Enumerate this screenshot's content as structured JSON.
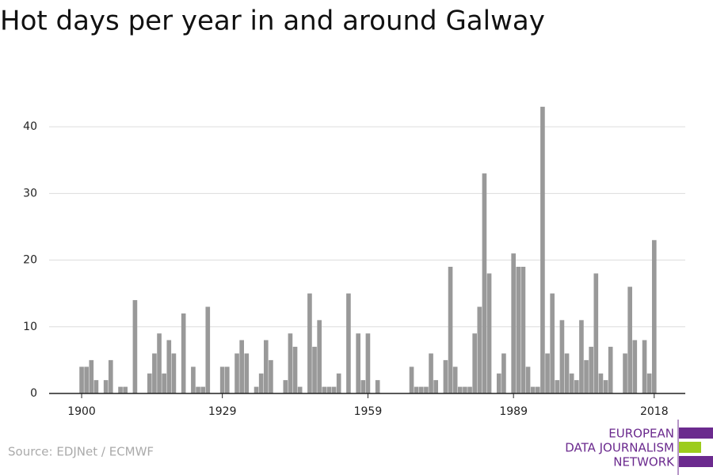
{
  "chart_data": {
    "type": "bar",
    "title": "Hot days per year in and around Galway",
    "x": [
      1900,
      1901,
      1902,
      1903,
      1904,
      1905,
      1906,
      1907,
      1908,
      1909,
      1910,
      1911,
      1912,
      1913,
      1914,
      1915,
      1916,
      1917,
      1918,
      1919,
      1920,
      1921,
      1922,
      1923,
      1924,
      1925,
      1926,
      1927,
      1928,
      1929,
      1930,
      1931,
      1932,
      1933,
      1934,
      1935,
      1936,
      1937,
      1938,
      1939,
      1940,
      1941,
      1942,
      1943,
      1944,
      1945,
      1946,
      1947,
      1948,
      1949,
      1950,
      1951,
      1952,
      1953,
      1954,
      1955,
      1956,
      1957,
      1958,
      1959,
      1960,
      1961,
      1962,
      1963,
      1964,
      1965,
      1966,
      1967,
      1968,
      1969,
      1970,
      1971,
      1972,
      1973,
      1974,
      1975,
      1976,
      1977,
      1978,
      1979,
      1980,
      1981,
      1982,
      1983,
      1984,
      1985,
      1986,
      1987,
      1988,
      1989,
      1990,
      1991,
      1992,
      1993,
      1994,
      1995,
      1996,
      1997,
      1998,
      1999,
      2000,
      2001,
      2002,
      2003,
      2004,
      2005,
      2006,
      2007,
      2008,
      2009,
      2010,
      2011,
      2012,
      2013,
      2014,
      2015,
      2016,
      2017,
      2018
    ],
    "values": [
      4,
      4,
      5,
      2,
      0,
      2,
      5,
      0,
      1,
      1,
      0,
      14,
      0,
      0,
      3,
      6,
      9,
      3,
      8,
      6,
      0,
      12,
      0,
      4,
      1,
      1,
      13,
      0,
      0,
      4,
      4,
      0,
      6,
      8,
      6,
      0,
      1,
      3,
      8,
      5,
      0,
      0,
      2,
      9,
      7,
      1,
      0,
      15,
      7,
      11,
      1,
      1,
      1,
      3,
      0,
      15,
      0,
      9,
      2,
      9,
      0,
      2,
      0,
      0,
      0,
      0,
      0,
      0,
      4,
      1,
      1,
      1,
      6,
      2,
      0,
      5,
      19,
      4,
      1,
      1,
      1,
      9,
      13,
      33,
      18,
      0,
      3,
      6,
      0,
      21,
      19,
      19,
      4,
      1,
      1,
      43,
      6,
      15,
      2,
      11,
      6,
      3,
      2,
      11,
      5,
      7,
      18,
      3,
      2,
      7,
      0,
      0,
      6,
      16,
      8,
      0,
      8,
      3,
      23
    ],
    "color": "#999999",
    "xlim": [
      1893.3,
      2024.4
    ],
    "xticks": [
      1900,
      1929,
      1959,
      1989,
      2018
    ],
    "ylim": [
      0,
      45
    ],
    "yticks": [
      0,
      10,
      20,
      30,
      40
    ],
    "grid": true
  },
  "source": "Source: EDJNet / ECMWF",
  "logo": {
    "lines": [
      "EUROPEAN",
      "DATA JOURNALISM",
      "NETWORK"
    ]
  }
}
